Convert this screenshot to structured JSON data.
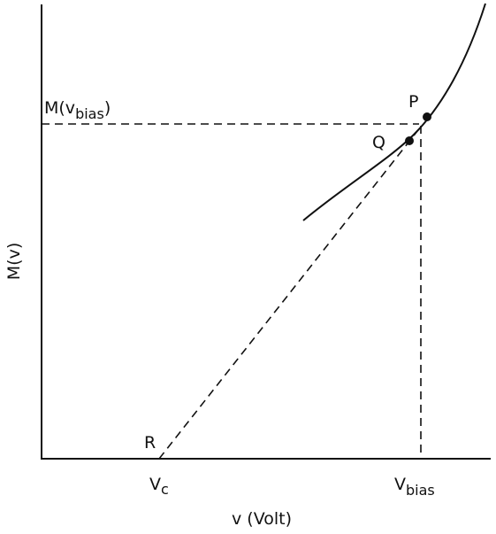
{
  "labels": {
    "m_bias": {
      "text": "M(v",
      "sub": "bias",
      "tail": ")"
    },
    "p": "P",
    "q": "Q",
    "r": "R",
    "v_c": {
      "text": "V",
      "sub": "c"
    },
    "v_bias": {
      "text": "V",
      "sub": "bias"
    },
    "y_axis": "M(v)",
    "x_axis": "v (Volt)"
  }
}
